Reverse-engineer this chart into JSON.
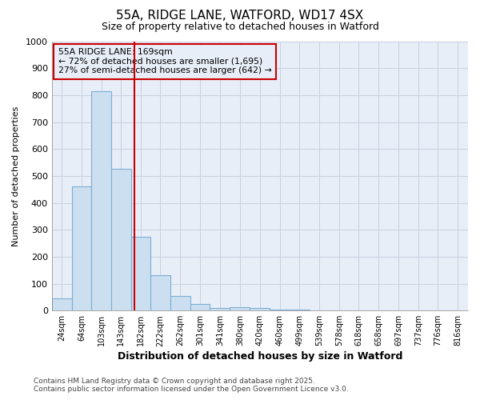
{
  "title1": "55A, RIDGE LANE, WATFORD, WD17 4SX",
  "title2": "Size of property relative to detached houses in Watford",
  "xlabel": "Distribution of detached houses by size in Watford",
  "ylabel": "Number of detached properties",
  "bin_labels": [
    "24sqm",
    "64sqm",
    "103sqm",
    "143sqm",
    "182sqm",
    "222sqm",
    "262sqm",
    "301sqm",
    "341sqm",
    "380sqm",
    "420sqm",
    "460sqm",
    "499sqm",
    "539sqm",
    "578sqm",
    "618sqm",
    "658sqm",
    "697sqm",
    "737sqm",
    "776sqm",
    "816sqm"
  ],
  "bin_edges": [
    4,
    44,
    83,
    123,
    162,
    201,
    241,
    281,
    320,
    360,
    400,
    440,
    479,
    519,
    558,
    598,
    637,
    677,
    717,
    756,
    796,
    836
  ],
  "bar_heights": [
    45,
    462,
    815,
    525,
    275,
    130,
    55,
    25,
    10,
    12,
    10,
    5,
    3,
    2,
    1,
    0,
    0,
    0,
    0,
    0,
    0
  ],
  "bar_facecolor": "#ccdff0",
  "bar_edgecolor": "#7aafd4",
  "property_line_x": 169,
  "property_line_color": "#cc0000",
  "ylim": [
    0,
    1000
  ],
  "yticks": [
    0,
    100,
    200,
    300,
    400,
    500,
    600,
    700,
    800,
    900,
    1000
  ],
  "annotation_title": "55A RIDGE LANE: 169sqm",
  "annotation_line1": "← 72% of detached houses are smaller (1,695)",
  "annotation_line2": "27% of semi-detached houses are larger (642) →",
  "annotation_box_color": "#cc0000",
  "grid_color": "#c8d0e0",
  "bg_color": "#ffffff",
  "plot_bg_color": "#e8eef8",
  "footnote1": "Contains HM Land Registry data © Crown copyright and database right 2025.",
  "footnote2": "Contains public sector information licensed under the Open Government Licence v3.0."
}
